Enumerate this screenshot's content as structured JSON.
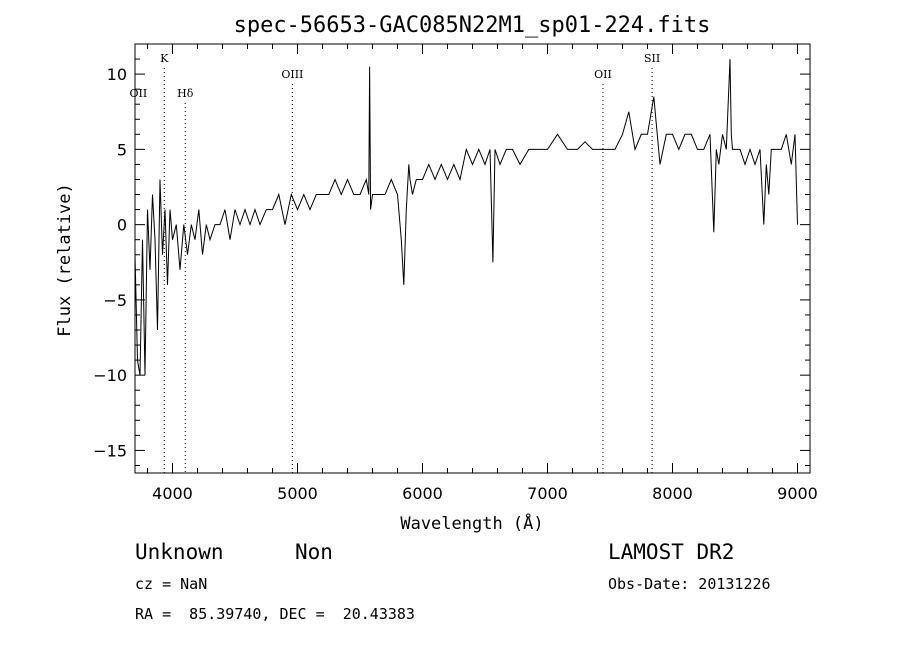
{
  "chart_data": {
    "type": "line",
    "title": "spec-56653-GAC085N22M1_sp01-224.fits",
    "xlabel": "Wavelength (Å)",
    "ylabel": "Flux (relative)",
    "xlim": [
      3700,
      9100
    ],
    "ylim": [
      -16.5,
      12
    ],
    "xticks": [
      4000,
      5000,
      6000,
      7000,
      8000,
      9000
    ],
    "yticks": [
      -15,
      -10,
      -5,
      0,
      5,
      10
    ],
    "grid": false,
    "line_color": "#000000",
    "spectral_lines": [
      {
        "label": "OII",
        "wavelength": 3727
      },
      {
        "label": "K",
        "wavelength": 3934
      },
      {
        "label": "Hδ",
        "wavelength": 4102
      },
      {
        "label": "OIII",
        "wavelength": 4959
      },
      {
        "label": "OII",
        "wavelength": 7444
      },
      {
        "label": "SII",
        "wavelength": 7837
      }
    ],
    "series": [
      {
        "x": [
          3700,
          3720,
          3740,
          3760,
          3780,
          3800,
          3820,
          3840,
          3860,
          3880,
          3900,
          3920,
          3940,
          3960,
          3980,
          4000,
          4030,
          4060,
          4090,
          4120,
          4150,
          4180,
          4210,
          4240,
          4270,
          4300,
          4340,
          4380,
          4420,
          4460,
          4500,
          4540,
          4580,
          4620,
          4660,
          4700,
          4750,
          4800,
          4850,
          4900,
          4950,
          5000,
          5050,
          5100,
          5150,
          5200,
          5250,
          5300,
          5350,
          5400,
          5450,
          5500,
          5550,
          5570,
          5577,
          5585,
          5600,
          5650,
          5700,
          5750,
          5800,
          5830,
          5850,
          5870,
          5890,
          5900,
          5920,
          5950,
          6000,
          6050,
          6100,
          6150,
          6200,
          6250,
          6300,
          6350,
          6400,
          6450,
          6500,
          6540,
          6563,
          6580,
          6620,
          6670,
          6720,
          6780,
          6850,
          6920,
          7000,
          7080,
          7160,
          7240,
          7300,
          7360,
          7420,
          7480,
          7540,
          7600,
          7650,
          7700,
          7750,
          7800,
          7850,
          7900,
          7950,
          8000,
          8050,
          8100,
          8150,
          8200,
          8250,
          8300,
          8330,
          8350,
          8370,
          8400,
          8430,
          8460,
          8470,
          8480,
          8500,
          8540,
          8580,
          8620,
          8660,
          8700,
          8730,
          8750,
          8770,
          8790,
          8830,
          8870,
          8910,
          8950,
          8980,
          9000
        ],
        "y": [
          -2,
          -9,
          -10,
          -1,
          -10,
          1,
          -3,
          2,
          -1,
          -7,
          3,
          -2,
          1,
          -4,
          1,
          -1,
          0,
          -3,
          0,
          -2,
          0,
          -1,
          1,
          -2,
          0,
          -1,
          0,
          0,
          1,
          -1,
          1,
          0,
          1,
          0,
          1,
          0,
          1,
          1,
          2,
          0,
          2,
          1,
          2,
          1,
          2,
          2,
          2,
          3,
          2,
          3,
          2,
          2,
          3,
          2,
          10.5,
          1,
          2,
          2,
          2,
          3,
          2,
          -1,
          -4,
          1,
          4,
          3,
          2,
          3,
          3,
          4,
          3,
          4,
          3,
          4,
          3,
          5,
          4,
          5,
          4,
          5,
          -2.5,
          5,
          4,
          5,
          5,
          4,
          5,
          5,
          5,
          6,
          5,
          5,
          5.5,
          5,
          5,
          5,
          5,
          6,
          7.5,
          5,
          6,
          6,
          8.5,
          4,
          6,
          6,
          5,
          6,
          6,
          5,
          5,
          6,
          -0.5,
          5,
          4,
          6,
          5,
          11,
          6,
          5,
          5,
          5,
          4,
          5,
          4,
          5,
          0,
          4,
          2,
          5,
          5,
          5,
          6,
          4,
          6,
          0
        ]
      }
    ]
  },
  "footer": {
    "class_label": "Unknown",
    "subclass_label": "Non",
    "survey_label": "LAMOST DR2",
    "cz_text": "cz = NaN",
    "obs_date_text": "Obs-Date: 20131226",
    "coords_text": "RA =  85.39740, DEC =  20.43383"
  }
}
